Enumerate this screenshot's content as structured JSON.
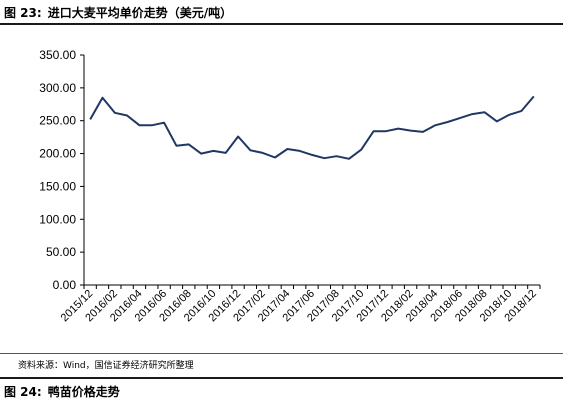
{
  "figure": {
    "number": "图 23:",
    "title": "进口大麦平均单价走势（美元/吨）"
  },
  "source_note": "资料来源：Wind，国信证券经济研究所整理",
  "next_figure": {
    "number": "图 24:",
    "title": "鸭苗价格走势"
  },
  "chart_data": {
    "type": "line",
    "title": "",
    "xlabel": "",
    "ylabel": "",
    "ylim": [
      0,
      350
    ],
    "yticks": [
      "0.00",
      "50.00",
      "100.00",
      "150.00",
      "200.00",
      "250.00",
      "300.00",
      "350.00"
    ],
    "x_tick_labels": [
      "2015/12",
      "2016/02",
      "2016/04",
      "2016/06",
      "2016/08",
      "2016/10",
      "2016/12",
      "2017/02",
      "2017/04",
      "2017/06",
      "2017/08",
      "2017/10",
      "2017/12",
      "2018/02",
      "2018/04",
      "2018/06",
      "2018/08",
      "2018/10",
      "2018/12"
    ],
    "x": [
      "2015/12",
      "2016/01",
      "2016/02",
      "2016/03",
      "2016/04",
      "2016/05",
      "2016/06",
      "2016/07",
      "2016/08",
      "2016/09",
      "2016/10",
      "2016/11",
      "2016/12",
      "2017/01",
      "2017/02",
      "2017/03",
      "2017/04",
      "2017/05",
      "2017/06",
      "2017/07",
      "2017/08",
      "2017/09",
      "2017/10",
      "2017/11",
      "2017/12",
      "2018/01",
      "2018/02",
      "2018/03",
      "2018/04",
      "2018/05",
      "2018/06",
      "2018/07",
      "2018/08",
      "2018/09",
      "2018/10",
      "2018/11",
      "2018/12"
    ],
    "series": [
      {
        "color": "#1f3864",
        "values": [
          252,
          285,
          262,
          258,
          243,
          243,
          247,
          212,
          214,
          200,
          204,
          201,
          226,
          205,
          201,
          194,
          207,
          204,
          198,
          193,
          196,
          192,
          206,
          234,
          234,
          238,
          235,
          233,
          243,
          248,
          254,
          260,
          263,
          249,
          259,
          265,
          287
        ]
      }
    ],
    "grid": false,
    "legend": "none"
  }
}
